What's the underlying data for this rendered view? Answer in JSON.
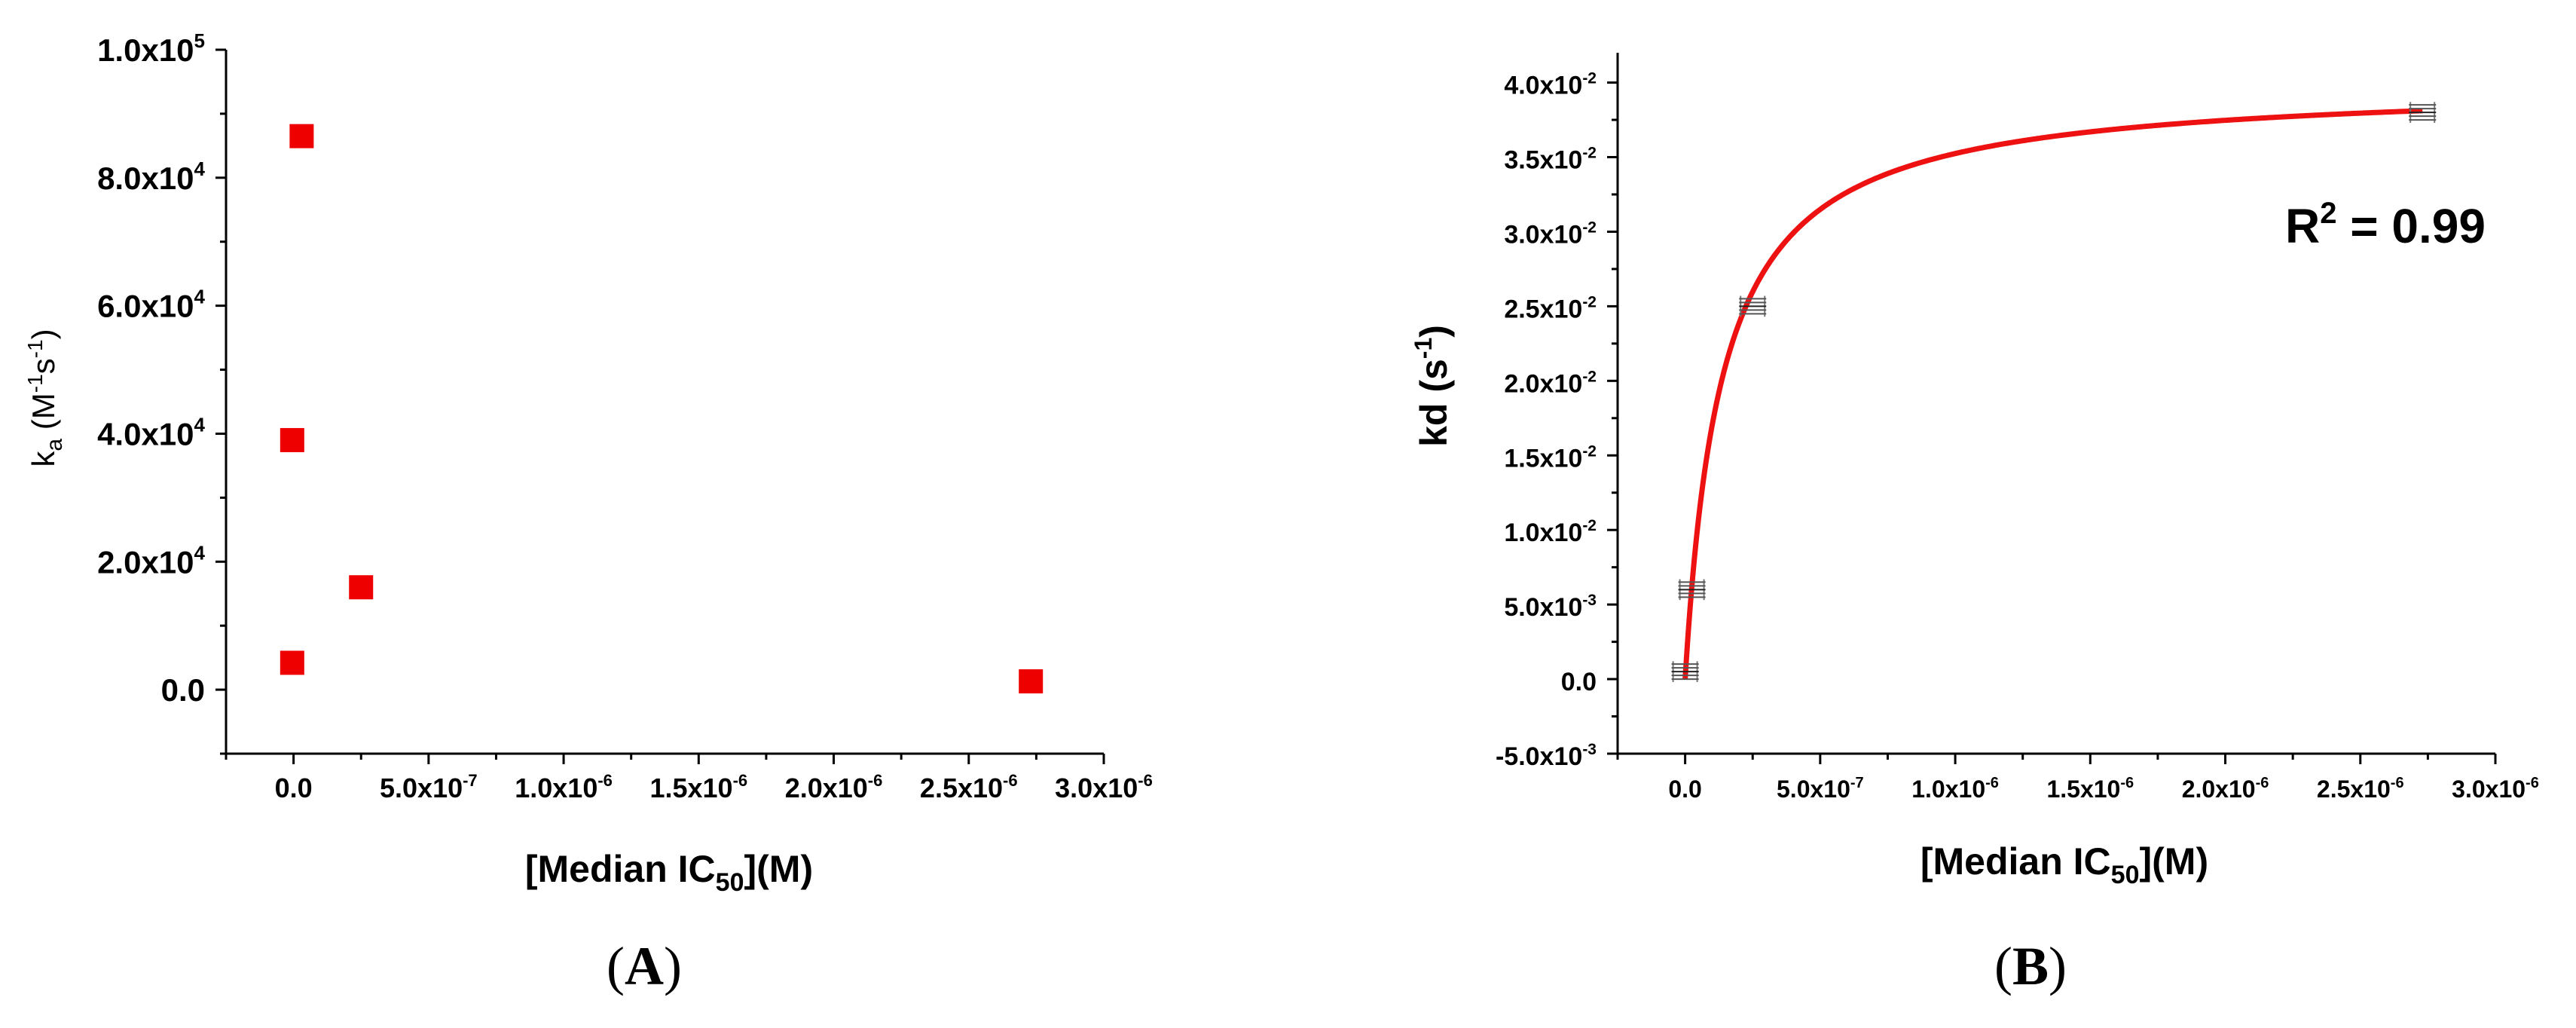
{
  "chart_data": [
    {
      "type": "scatter",
      "panel_label": "(A)",
      "xlabel": "[Median IC50](M)",
      "ylabel": "ka (M-1s-1)",
      "xlim": [
        -2.5e-07,
        3e-06
      ],
      "ylim": [
        -10000,
        100000
      ],
      "x_ticks": [
        {
          "value": 0,
          "mantissa": "0.0",
          "exp": ""
        },
        {
          "value": 5e-07,
          "mantissa": "5.0x10",
          "exp": "-7"
        },
        {
          "value": 1e-06,
          "mantissa": "1.0x10",
          "exp": "-6"
        },
        {
          "value": 1.5e-06,
          "mantissa": "1.5x10",
          "exp": "-6"
        },
        {
          "value": 2e-06,
          "mantissa": "2.0x10",
          "exp": "-6"
        },
        {
          "value": 2.5e-06,
          "mantissa": "2.5x10",
          "exp": "-6"
        },
        {
          "value": 3e-06,
          "mantissa": "3.0x10",
          "exp": "-6"
        }
      ],
      "y_ticks": [
        {
          "value": 0,
          "mantissa": "0.0",
          "exp": ""
        },
        {
          "value": 20000,
          "mantissa": "2.0x10",
          "exp": "4"
        },
        {
          "value": 40000,
          "mantissa": "4.0x10",
          "exp": "4"
        },
        {
          "value": 60000,
          "mantissa": "6.0x10",
          "exp": "4"
        },
        {
          "value": 80000,
          "mantissa": "8.0x10",
          "exp": "4"
        },
        {
          "value": 100000,
          "mantissa": "1.0x10",
          "exp": "5"
        }
      ],
      "series": [
        {
          "marker": "square",
          "color": "#ee0000",
          "points": [
            {
              "x": 3e-08,
              "y": 86500
            },
            {
              "x": -5e-09,
              "y": 39000
            },
            {
              "x": 2.5e-07,
              "y": 16000
            },
            {
              "x": -5e-09,
              "y": 4200
            },
            {
              "x": 2.73e-06,
              "y": 1300
            }
          ]
        }
      ],
      "grid": false,
      "legend": "none"
    },
    {
      "type": "scatter",
      "panel_label": "(B)",
      "xlabel": "[Median IC50](M)",
      "ylabel": "kd (s-1)",
      "annotation": "R2 = 0.99",
      "xlim": [
        -2.5e-07,
        3e-06
      ],
      "ylim": [
        -0.005,
        0.042
      ],
      "x_ticks": [
        {
          "value": 0,
          "mantissa": "0.0",
          "exp": ""
        },
        {
          "value": 5e-07,
          "mantissa": "5.0x10",
          "exp": "-7"
        },
        {
          "value": 1e-06,
          "mantissa": "1.0x10",
          "exp": "-6"
        },
        {
          "value": 1.5e-06,
          "mantissa": "1.5x10",
          "exp": "-6"
        },
        {
          "value": 2e-06,
          "mantissa": "2.0x10",
          "exp": "-6"
        },
        {
          "value": 2.5e-06,
          "mantissa": "2.5x10",
          "exp": "-6"
        },
        {
          "value": 3e-06,
          "mantissa": "3.0x10",
          "exp": "-6"
        }
      ],
      "y_ticks": [
        {
          "value": -0.005,
          "mantissa": "-5.0x10",
          "exp": "-3"
        },
        {
          "value": 0,
          "mantissa": "0.0",
          "exp": ""
        },
        {
          "value": 0.005,
          "mantissa": "5.0x10",
          "exp": "-3"
        },
        {
          "value": 0.01,
          "mantissa": "1.0x10",
          "exp": "-2"
        },
        {
          "value": 0.015,
          "mantissa": "1.5x10",
          "exp": "-2"
        },
        {
          "value": 0.02,
          "mantissa": "2.0x10",
          "exp": "-2"
        },
        {
          "value": 0.025,
          "mantissa": "2.5x10",
          "exp": "-2"
        },
        {
          "value": 0.03,
          "mantissa": "3.0x10",
          "exp": "-2"
        },
        {
          "value": 0.035,
          "mantissa": "3.5x10",
          "exp": "-2"
        },
        {
          "value": 0.04,
          "mantissa": "4.0x10",
          "exp": "-2"
        }
      ],
      "series": [
        {
          "marker": "error-bar",
          "color": "#333333",
          "points": [
            {
              "x": 0,
              "y": 0.0005,
              "yerr": 0.0007
            },
            {
              "x": 2.5e-08,
              "y": 0.006,
              "yerr": 0.0007
            },
            {
              "x": 2.5e-07,
              "y": 0.025,
              "yerr": 0.0007
            },
            {
              "x": 2.73e-06,
              "y": 0.038,
              "yerr": 0.0007
            }
          ]
        },
        {
          "type": "line",
          "color": "#ee0000",
          "fit": "hyperbolic",
          "ymax": 0.04,
          "k": 1.35e-07,
          "x_range": [
            0,
            2.73e-06
          ]
        }
      ],
      "grid": false,
      "legend": "none"
    }
  ]
}
